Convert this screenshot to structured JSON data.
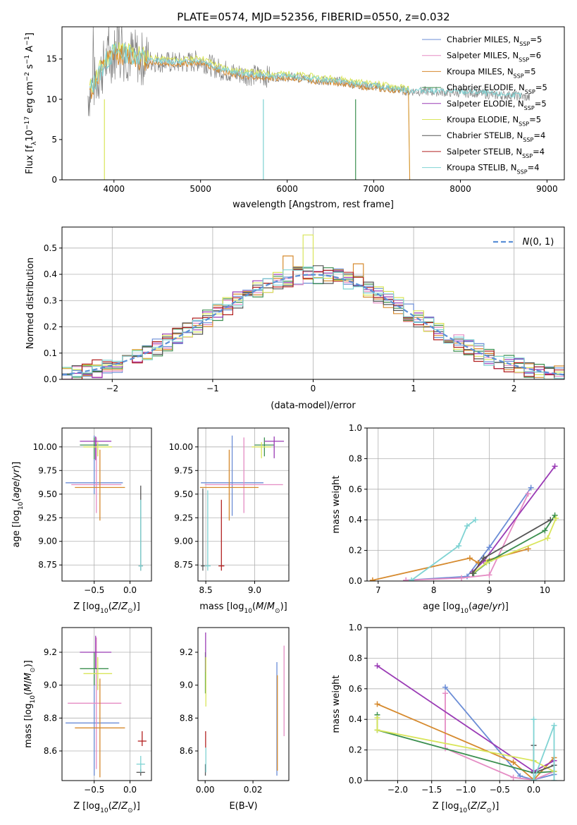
{
  "title": "PLATE=0574, MJD=52356, FIBERID=0550, z=0.032",
  "colors": {
    "chabrier_miles": "#6b8dd6",
    "salpeter_miles": "#e58cc4",
    "kroupa_miles": "#d68a2e",
    "chabrier_elodie": "#3b8f4f",
    "salpeter_elodie": "#9a3bb5",
    "kroupa_elodie": "#d9e55a",
    "chabrier_stelib": "#555555",
    "salpeter_stelib": "#b22020",
    "kroupa_stelib": "#7fd3d3",
    "spectrum_data": "#808080",
    "gaussian": "#5b8fd6"
  },
  "chart_data": [
    {
      "id": "spectrum",
      "type": "line",
      "xlabel": "wavelength [Angstrom, rest frame]",
      "ylabel": "Flux [f_λ10^-17 erg cm^-2 s^-1 A^-1]",
      "xlim": [
        3400,
        9200
      ],
      "ylim": [
        0,
        19
      ],
      "xticks": [
        4000,
        5000,
        6000,
        7000,
        8000,
        9000
      ],
      "yticks": [
        0,
        5,
        10,
        15
      ],
      "grid": false,
      "legend_position": "top-right",
      "legend": [
        "Chabrier MILES, N_SSP=5",
        "Salpeter MILES, N_SSP=6",
        "Kroupa MILES, N_SSP=5",
        "Chabrier ELODIE, N_SSP=5",
        "Salpeter ELODIE, N_SSP=5",
        "Kroupa ELODIE, N_SSP=5",
        "Chabrier STELIB, N_SSP=4",
        "Salpeter STELIB, N_SSP=4",
        "Kroupa STELIB, N_SSP=4"
      ],
      "continuum": {
        "x": [
          3700,
          3800,
          3900,
          4000,
          4200,
          4400,
          4600,
          4800,
          5000,
          5200,
          5400,
          5600,
          5800,
          6000,
          6200,
          6400,
          6600,
          6800,
          7000,
          7200,
          7400,
          7600,
          7800,
          8000,
          8200,
          8400,
          8600,
          8800
        ],
        "y": [
          10.5,
          12.5,
          14.5,
          15.8,
          15.5,
          14.8,
          14.6,
          14.5,
          14.8,
          13.8,
          13.2,
          13.0,
          12.8,
          12.8,
          12.6,
          12.3,
          12.2,
          11.8,
          11.6,
          11.3,
          11.0,
          11.0,
          10.9,
          10.8,
          10.8,
          10.5,
          10.5,
          10.2
        ]
      }
    },
    {
      "id": "histogram",
      "type": "bar",
      "xlabel": "(data-model)/error",
      "ylabel": "Normed distribution",
      "xlim": [
        -2.5,
        2.5
      ],
      "ylim": [
        0,
        0.58
      ],
      "xticks": [
        -2,
        -1,
        0,
        1,
        2
      ],
      "yticks": [
        0.0,
        0.1,
        0.2,
        0.3,
        0.4,
        0.5
      ],
      "grid": true,
      "legend_position": "top-right",
      "legend": [
        "N(0,1)"
      ],
      "bin_width": 0.1
    },
    {
      "id": "age_vs_Z",
      "type": "scatter",
      "xlabel": "Z [log10(Z/Z☉)]",
      "ylabel": "age  [log10(age/yr)]",
      "xlim": [
        -0.95,
        0.3
      ],
      "ylim": [
        8.58,
        10.2
      ],
      "xticks": [
        -0.5,
        0.0
      ],
      "yticks": [
        8.75,
        9.0,
        9.25,
        9.5,
        9.75,
        10.0
      ],
      "grid": true,
      "points": [
        {
          "model": "chabrier_miles",
          "x": -0.5,
          "y": 9.62,
          "xerr": [
            0.4,
            0.4
          ],
          "yerr": [
            0.12,
            0.5
          ]
        },
        {
          "model": "salpeter_miles",
          "x": -0.47,
          "y": 9.6,
          "xerr": [
            0.35,
            0.35
          ],
          "yerr": [
            0.3,
            0.5
          ]
        },
        {
          "model": "kroupa_miles",
          "x": -0.42,
          "y": 9.57,
          "xerr": [
            0.35,
            0.35
          ],
          "yerr": [
            0.35,
            0.4
          ]
        },
        {
          "model": "chabrier_elodie",
          "x": -0.5,
          "y": 10.02,
          "xerr": [
            0.2,
            0.2
          ],
          "yerr": [
            0.15,
            0.08
          ]
        },
        {
          "model": "salpeter_elodie",
          "x": -0.48,
          "y": 10.06,
          "xerr": [
            0.22,
            0.22
          ],
          "yerr": [
            0.2,
            0.05
          ]
        },
        {
          "model": "kroupa_elodie",
          "x": -0.45,
          "y": 10.0,
          "xerr": [
            0.2,
            0.2
          ],
          "yerr": [
            0.1,
            0.05
          ]
        },
        {
          "model": "chabrier_stelib",
          "x": 0.15,
          "y": 8.74,
          "xerr": [
            0.03,
            0.03
          ],
          "yerr": [
            0.05,
            0.85
          ]
        },
        {
          "model": "kroupa_stelib",
          "x": 0.15,
          "y": 8.74,
          "xerr": [
            0.03,
            0.03
          ],
          "yerr": [
            0.05,
            0.7
          ]
        }
      ]
    },
    {
      "id": "age_vs_mass",
      "type": "scatter",
      "xlabel": "mass [log10(M/M☉)]",
      "ylabel": "",
      "xlim": [
        8.42,
        9.35
      ],
      "ylim": [
        8.58,
        10.2
      ],
      "xticks": [
        8.5,
        9.0
      ],
      "yticks": [
        8.75,
        9.0,
        9.25,
        9.5,
        9.75,
        10.0
      ],
      "grid": true,
      "points": [
        {
          "model": "chabrier_miles",
          "x": 8.77,
          "y": 9.62,
          "xerr": [
            0.32,
            0.32
          ],
          "yerr": [
            0.35,
            0.5
          ]
        },
        {
          "model": "salpeter_miles",
          "x": 8.89,
          "y": 9.6,
          "xerr": [
            0.4,
            0.4
          ],
          "yerr": [
            0.3,
            0.5
          ]
        },
        {
          "model": "kroupa_miles",
          "x": 8.74,
          "y": 9.57,
          "xerr": [
            0.3,
            0.3
          ],
          "yerr": [
            0.35,
            0.4
          ]
        },
        {
          "model": "chabrier_elodie",
          "x": 9.1,
          "y": 10.02,
          "xerr": [
            0.1,
            0.1
          ],
          "yerr": [
            0.12,
            0.08
          ]
        },
        {
          "model": "salpeter_elodie",
          "x": 9.2,
          "y": 10.06,
          "xerr": [
            0.1,
            0.1
          ],
          "yerr": [
            0.18,
            0.05
          ]
        },
        {
          "model": "kroupa_elodie",
          "x": 9.07,
          "y": 10.0,
          "xerr": [
            0.1,
            0.1
          ],
          "yerr": [
            0.12,
            0.05
          ]
        },
        {
          "model": "chabrier_stelib",
          "x": 8.47,
          "y": 8.74,
          "xerr": [
            0.02,
            0.02
          ],
          "yerr": [
            0.05,
            0.82
          ]
        },
        {
          "model": "salpeter_stelib",
          "x": 8.66,
          "y": 8.74,
          "xerr": [
            0.03,
            0.03
          ],
          "yerr": [
            0.05,
            0.7
          ]
        },
        {
          "model": "kroupa_stelib",
          "x": 8.52,
          "y": 8.74,
          "xerr": [
            0.03,
            0.03
          ],
          "yerr": [
            0.05,
            0.8
          ]
        }
      ]
    },
    {
      "id": "massweight_vs_age",
      "type": "line",
      "xlabel": "age  [log10(age/yr)]",
      "ylabel": "mass weight",
      "xlim": [
        6.8,
        10.35
      ],
      "ylim": [
        0,
        1.0
      ],
      "xticks": [
        7,
        8,
        9,
        10
      ],
      "yticks": [
        0.0,
        0.2,
        0.4,
        0.6,
        0.8,
        1.0
      ],
      "grid": true,
      "series": [
        {
          "model": "chabrier_miles",
          "x": [
            7.5,
            8.6,
            9.0,
            9.75
          ],
          "y": [
            0.005,
            0.03,
            0.22,
            0.61
          ]
        },
        {
          "model": "salpeter_miles",
          "x": [
            7.5,
            8.5,
            9.0,
            9.7
          ],
          "y": [
            0.005,
            0.02,
            0.04,
            0.57
          ]
        },
        {
          "model": "kroupa_miles",
          "x": [
            6.9,
            8.65,
            8.8,
            9.7
          ],
          "y": [
            0.005,
            0.15,
            0.12,
            0.21
          ]
        },
        {
          "model": "chabrier_elodie",
          "x": [
            8.72,
            9.0,
            10.0,
            10.18
          ],
          "y": [
            0.05,
            0.13,
            0.33,
            0.43
          ]
        },
        {
          "model": "salpeter_elodie",
          "x": [
            8.7,
            8.9,
            10.18
          ],
          "y": [
            0.06,
            0.13,
            0.75
          ]
        },
        {
          "model": "kroupa_elodie",
          "x": [
            8.7,
            8.95,
            10.05,
            10.2
          ],
          "y": [
            0.05,
            0.12,
            0.28,
            0.41
          ]
        },
        {
          "model": "chabrier_stelib",
          "x": [
            8.7,
            8.9,
            10.1
          ],
          "y": [
            0.05,
            0.15,
            0.4
          ]
        },
        {
          "model": "kroupa_stelib",
          "x": [
            7.6,
            8.45,
            8.6,
            8.75
          ],
          "y": [
            0.005,
            0.23,
            0.36,
            0.4
          ]
        }
      ]
    },
    {
      "id": "mass_vs_Z",
      "type": "scatter",
      "xlabel": "Z [log10(Z/Z☉)]",
      "ylabel": "mass [log10(M/M☉)]",
      "xlim": [
        -0.95,
        0.3
      ],
      "ylim": [
        8.42,
        9.35
      ],
      "xticks": [
        -0.5,
        0.0
      ],
      "yticks": [
        8.6,
        8.8,
        9.0,
        9.2
      ],
      "grid": true,
      "points": [
        {
          "model": "chabrier_miles",
          "x": -0.5,
          "y": 8.77,
          "xerr": [
            0.4,
            0.35
          ],
          "yerr": [
            0.32,
            0.32
          ]
        },
        {
          "model": "salpeter_miles",
          "x": -0.47,
          "y": 8.89,
          "xerr": [
            0.4,
            0.35
          ],
          "yerr": [
            0.4,
            0.4
          ]
        },
        {
          "model": "kroupa_miles",
          "x": -0.42,
          "y": 8.74,
          "xerr": [
            0.35,
            0.35
          ],
          "yerr": [
            0.3,
            0.3
          ]
        },
        {
          "model": "chabrier_elodie",
          "x": -0.5,
          "y": 9.1,
          "xerr": [
            0.2,
            0.2
          ],
          "yerr": [
            0.1,
            0.1
          ]
        },
        {
          "model": "salpeter_elodie",
          "x": -0.48,
          "y": 9.2,
          "xerr": [
            0.22,
            0.22
          ],
          "yerr": [
            0.1,
            0.1
          ]
        },
        {
          "model": "kroupa_elodie",
          "x": -0.45,
          "y": 9.07,
          "xerr": [
            0.2,
            0.2
          ],
          "yerr": [
            0.1,
            0.1
          ]
        },
        {
          "model": "chabrier_stelib",
          "x": 0.15,
          "y": 8.47,
          "xerr": [
            0.06,
            0.06
          ],
          "yerr": [
            0.02,
            0.02
          ]
        },
        {
          "model": "salpeter_stelib",
          "x": 0.17,
          "y": 8.66,
          "xerr": [
            0.06,
            0.06
          ],
          "yerr": [
            0.03,
            0.06
          ]
        },
        {
          "model": "kroupa_stelib",
          "x": 0.15,
          "y": 8.52,
          "xerr": [
            0.06,
            0.06
          ],
          "yerr": [
            0.05,
            0.05
          ]
        }
      ]
    },
    {
      "id": "mass_vs_ebv",
      "type": "scatter",
      "xlabel": "E(B-V)",
      "ylabel": "",
      "xlim": [
        -0.003,
        0.035
      ],
      "ylim": [
        8.42,
        9.35
      ],
      "xticks": [
        0.0,
        0.02
      ],
      "yticks": [
        8.6,
        8.8,
        9.0,
        9.2
      ],
      "grid": false,
      "points": [
        {
          "model": "chabrier_miles",
          "x": 0.03,
          "y": 8.77,
          "xerr": [
            0,
            0
          ],
          "yerr": [
            0.32,
            0.37
          ]
        },
        {
          "model": "salpeter_miles",
          "x": 0.033,
          "y": 8.89,
          "xerr": [
            0,
            0
          ],
          "yerr": [
            0.2,
            0.35
          ]
        },
        {
          "model": "kroupa_miles",
          "x": 0.0302,
          "y": 8.74,
          "xerr": [
            0,
            0
          ],
          "yerr": [
            0.26,
            0.32
          ]
        },
        {
          "model": "chabrier_elodie",
          "x": 0.0001,
          "y": 9.1,
          "xerr": [
            0,
            0
          ],
          "yerr": [
            0.15,
            0.1
          ]
        },
        {
          "model": "salpeter_elodie",
          "x": 0.0002,
          "y": 9.2,
          "xerr": [
            0,
            0
          ],
          "yerr": [
            0.12,
            0.12
          ]
        },
        {
          "model": "kroupa_elodie",
          "x": 0.0003,
          "y": 9.07,
          "xerr": [
            0,
            0
          ],
          "yerr": [
            0.2,
            0.1
          ]
        },
        {
          "model": "chabrier_stelib",
          "x": 0.0001,
          "y": 8.47,
          "xerr": [
            0,
            0
          ],
          "yerr": [
            0.02,
            0.05
          ]
        },
        {
          "model": "salpeter_stelib",
          "x": 0.0002,
          "y": 8.66,
          "xerr": [
            0,
            0
          ],
          "yerr": [
            0.04,
            0.06
          ]
        },
        {
          "model": "kroupa_stelib",
          "x": 0.0003,
          "y": 8.52,
          "xerr": [
            0,
            0
          ],
          "yerr": [
            0.05,
            0.1
          ]
        }
      ]
    },
    {
      "id": "massweight_vs_Z",
      "type": "line",
      "xlabel": "Z [log10(Z/Z☉)]",
      "ylabel": "mass weight",
      "xlim": [
        -2.45,
        0.45
      ],
      "ylim": [
        0,
        1.0
      ],
      "xticks": [
        -2.0,
        -1.5,
        -1.0,
        -0.5,
        0.0
      ],
      "yticks": [
        0.0,
        0.2,
        0.4,
        0.6,
        0.8,
        1.0
      ],
      "grid": true,
      "series": [
        {
          "model": "chabrier_miles",
          "x": [
            -1.3,
            -0.2,
            0.0,
            0.3
          ],
          "y": [
            0.61,
            0.03,
            0.005,
            0.04
          ]
        },
        {
          "model": "salpeter_miles",
          "x": [
            -1.3,
            -1.3,
            -0.3,
            0.0,
            0.3
          ],
          "y": [
            0.57,
            0.21,
            0.02,
            0.005,
            0.06
          ]
        },
        {
          "model": "kroupa_miles",
          "x": [
            -2.3,
            -0.3,
            0.0,
            0.3
          ],
          "y": [
            0.5,
            0.12,
            0.005,
            0.15
          ]
        },
        {
          "model": "chabrier_elodie",
          "x": [
            -2.3,
            -2.3,
            0.0,
            0.3
          ],
          "y": [
            0.43,
            0.33,
            0.05,
            0.06
          ]
        },
        {
          "model": "salpeter_elodie",
          "x": [
            -2.3,
            0.0,
            0.3
          ],
          "y": [
            0.75,
            0.06,
            0.13
          ]
        },
        {
          "model": "kroupa_elodie",
          "x": [
            -2.3,
            -2.3,
            0.0,
            0.3
          ],
          "y": [
            0.41,
            0.33,
            0.13,
            0.06
          ]
        },
        {
          "model": "chabrier_stelib",
          "x": [
            0.0,
            0.0,
            0.3
          ],
          "y": [
            0.23,
            0.05,
            0.1
          ]
        },
        {
          "model": "kroupa_stelib",
          "x": [
            0.0,
            0.0,
            0.3,
            0.3
          ],
          "y": [
            0.4,
            0.005,
            0.36,
            0.0
          ]
        }
      ]
    }
  ]
}
